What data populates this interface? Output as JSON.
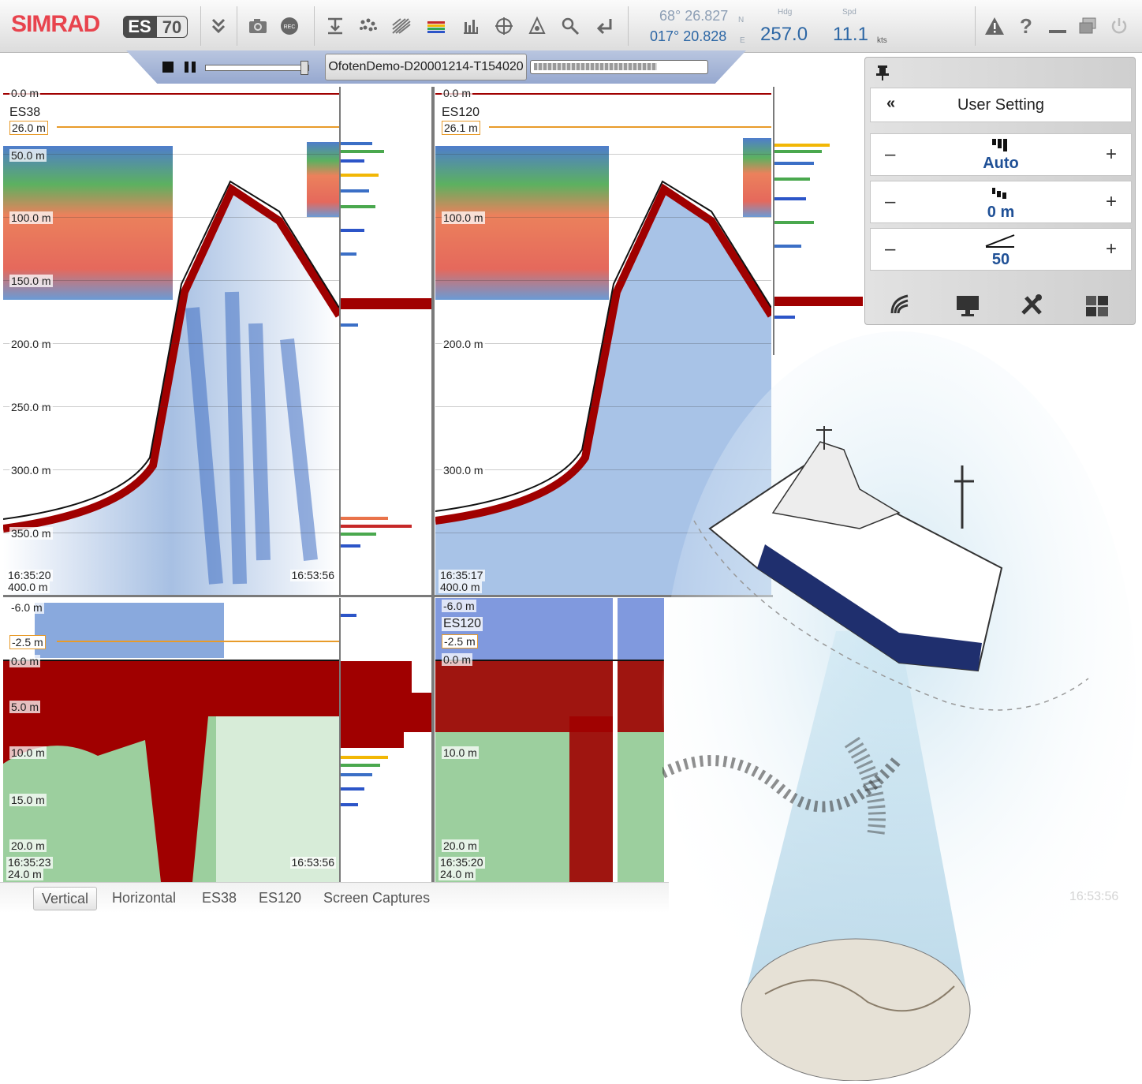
{
  "app": {
    "brand": "SIMRAD",
    "model_left": "ES",
    "model_right": "70",
    "corner_time": "16:53:56"
  },
  "toolbar": {
    "icons": [
      "chevron-double-down-icon",
      "camera-icon",
      "record-icon",
      "depth-marker-icon",
      "fish-icon",
      "range-icon",
      "color-scale-icon",
      "histogram-icon",
      "crosshair-icon",
      "transducer-icon",
      "search-icon",
      "enter-icon"
    ],
    "record_label": "REC"
  },
  "navigation": {
    "lat": "68° 26.827",
    "lat_hemisphere": "N",
    "lon": "017° 20.828",
    "lon_hemisphere": "E",
    "heading_label": "Hdg",
    "heading": "257.0",
    "speed_label": "Spd",
    "speed": "11.1",
    "speed_unit": "kts"
  },
  "window_controls": [
    "warning-icon",
    "help-icon",
    "minimize-icon",
    "restore-icon",
    "power-icon"
  ],
  "replay": {
    "filename": "OfotenDemo-D20001214-T154020",
    "progress": 0.72
  },
  "panels": {
    "es38_top": {
      "channel": "ES38",
      "top_depth": "0.0 m",
      "range_marker": "26.0 m",
      "depths": [
        "50.0 m",
        "100.0 m",
        "150.0 m",
        "200.0 m",
        "250.0 m",
        "300.0 m",
        "350.0 m"
      ],
      "time_start": "16:35:20",
      "time_end": "16:53:56",
      "bottom_depth": "400.0 m"
    },
    "es120_top": {
      "channel": "ES120",
      "top_depth": "0.0 m",
      "range_marker": "26.1 m",
      "depths": [
        "100.0 m",
        "200.0 m",
        "300.0 m"
      ],
      "time_start": "16:35:17",
      "bottom_depth": "400.0 m"
    },
    "es38_bottom": {
      "top_depth": "-6.0 m",
      "range_marker": "-2.5 m",
      "zero": "0.0 m",
      "depths": [
        "5.0 m",
        "10.0 m",
        "15.0 m",
        "20.0 m"
      ],
      "time_start": "16:35:23",
      "time_end": "16:53:56",
      "bottom_depth": "24.0 m"
    },
    "es120_bottom": {
      "channel": "ES120",
      "top_depth": "-6.0 m",
      "range_marker": "-2.5 m",
      "zero": "0.0 m",
      "depths": [
        "10.0 m",
        "20.0 m"
      ],
      "time_start": "16:35:20",
      "bottom_depth": "24.0 m"
    }
  },
  "settings_panel": {
    "title": "User Setting",
    "gain": "Auto",
    "offset": "0 m",
    "slope": "50",
    "minus": "–",
    "plus": "+",
    "bottom_icons": [
      "sonar-icon",
      "monitor-icon",
      "tools-icon",
      "layout-icon"
    ]
  },
  "tabs": [
    "Vertical",
    "Horizontal",
    "ES38",
    "ES120",
    "Screen Captures"
  ],
  "active_tab": "Vertical"
}
